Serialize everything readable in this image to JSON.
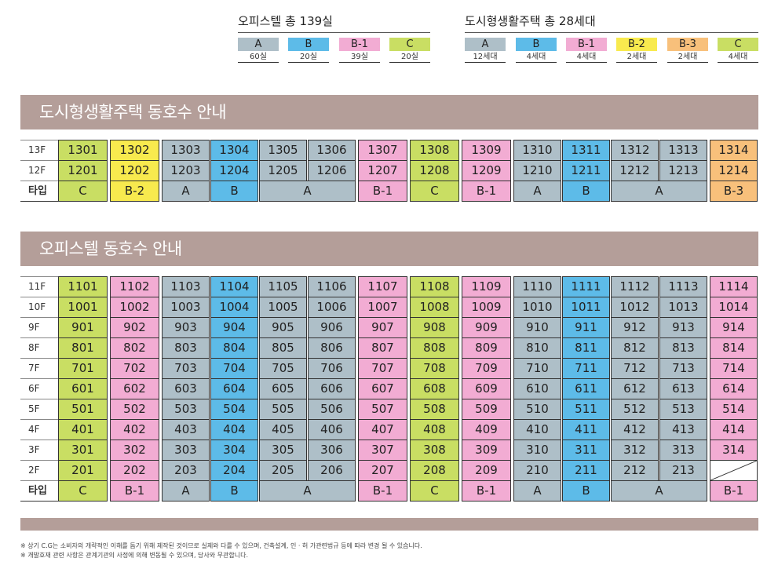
{
  "colors": {
    "A": "#aebfc8",
    "B": "#5dbbe8",
    "B-1": "#f2acd3",
    "B-2": "#f8ea4e",
    "B-3": "#f8c07b",
    "C": "#c9de63",
    "banner": "#b49e99"
  },
  "legend_officetel": {
    "title": "오피스텔 총 139실",
    "items": [
      {
        "type": "A",
        "count": "60실"
      },
      {
        "type": "B",
        "count": "20실"
      },
      {
        "type": "B-1",
        "count": "39실"
      },
      {
        "type": "C",
        "count": "20실"
      }
    ]
  },
  "legend_housing": {
    "title": "도시형생활주택 총 28세대",
    "items": [
      {
        "type": "A",
        "count": "12세대"
      },
      {
        "type": "B",
        "count": "4세대"
      },
      {
        "type": "B-1",
        "count": "4세대"
      },
      {
        "type": "B-2",
        "count": "2세대"
      },
      {
        "type": "B-3",
        "count": "2세대"
      },
      {
        "type": "C",
        "count": "4세대"
      }
    ]
  },
  "housing": {
    "title": "도시형생활주택 동호수 안내",
    "floors": [
      "13F",
      "12F"
    ],
    "type_label": "타입",
    "units": [
      "01",
      "02",
      "03",
      "04",
      "05",
      "06",
      "07",
      "08",
      "09",
      "10",
      "11",
      "12",
      "13",
      "14"
    ],
    "unit_types": [
      "C",
      "B-2",
      "A",
      "B",
      "A",
      "A",
      "B-1",
      "C",
      "B-1",
      "A",
      "B",
      "A",
      "A",
      "B-3"
    ],
    "type_groups": [
      {
        "label": "C",
        "start": 0,
        "span": 1
      },
      {
        "label": "B-2",
        "start": 1,
        "span": 1
      },
      {
        "label": "A",
        "start": 2,
        "span": 1
      },
      {
        "label": "B",
        "start": 3,
        "span": 1
      },
      {
        "label": "A",
        "start": 4,
        "span": 2
      },
      {
        "label": "B-1",
        "start": 6,
        "span": 1
      },
      {
        "label": "C",
        "start": 7,
        "span": 1
      },
      {
        "label": "B-1",
        "start": 8,
        "span": 1
      },
      {
        "label": "A",
        "start": 9,
        "span": 1
      },
      {
        "label": "B",
        "start": 10,
        "span": 1
      },
      {
        "label": "A",
        "start": 11,
        "span": 2
      },
      {
        "label": "B-3",
        "start": 13,
        "span": 1
      }
    ],
    "empty_cells": []
  },
  "officetel": {
    "title": "오피스텔 동호수 안내",
    "floors": [
      "11F",
      "10F",
      "9F",
      "8F",
      "7F",
      "6F",
      "5F",
      "4F",
      "3F",
      "2F"
    ],
    "type_label": "타입",
    "units": [
      "01",
      "02",
      "03",
      "04",
      "05",
      "06",
      "07",
      "08",
      "09",
      "10",
      "11",
      "12",
      "13",
      "14"
    ],
    "unit_types": [
      "C",
      "B-1",
      "A",
      "B",
      "A",
      "A",
      "B-1",
      "C",
      "B-1",
      "A",
      "B",
      "A",
      "A",
      "B-1"
    ],
    "type_groups": [
      {
        "label": "C",
        "start": 0,
        "span": 1
      },
      {
        "label": "B-1",
        "start": 1,
        "span": 1
      },
      {
        "label": "A",
        "start": 2,
        "span": 1
      },
      {
        "label": "B",
        "start": 3,
        "span": 1
      },
      {
        "label": "A",
        "start": 4,
        "span": 2
      },
      {
        "label": "B-1",
        "start": 6,
        "span": 1
      },
      {
        "label": "C",
        "start": 7,
        "span": 1
      },
      {
        "label": "B-1",
        "start": 8,
        "span": 1
      },
      {
        "label": "A",
        "start": 9,
        "span": 1
      },
      {
        "label": "B",
        "start": 10,
        "span": 1
      },
      {
        "label": "A",
        "start": 11,
        "span": 2
      },
      {
        "label": "B-1",
        "start": 13,
        "span": 1
      }
    ],
    "empty_cells": [
      "214"
    ]
  },
  "notes": [
    "※ 상기 C.G는 소비자의 개략적인 이해를 돕기 위해 제작된 것이므로 실제와 다를 수 있으며, 건축설계, 인 · 허 가관련법규 등에 따라 변경 될 수 있습니다.",
    "※ 개발호재 관련 사항은 관계기관의 사정에 의해 변동될 수 있으며, 당사와 무관합니다."
  ]
}
